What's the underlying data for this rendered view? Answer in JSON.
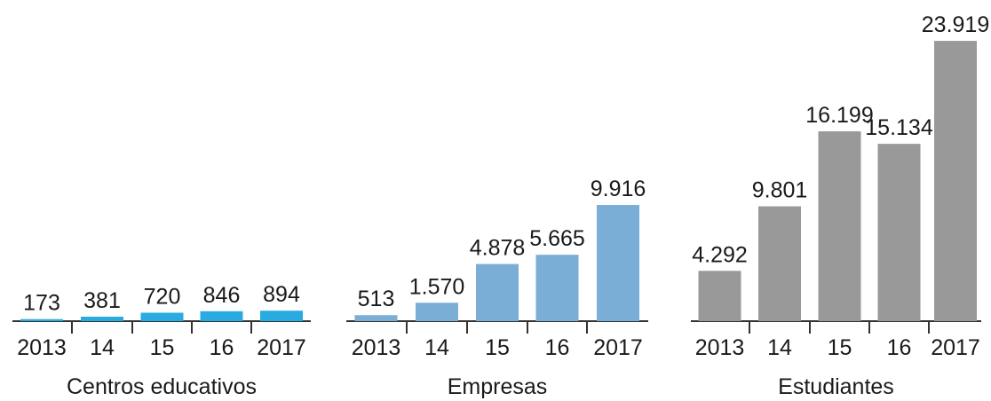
{
  "chart_data": [
    {
      "type": "bar",
      "xlabel": "Centros educativos",
      "categories": [
        "2013",
        "14",
        "15",
        "16",
        "2017"
      ],
      "values": [
        173,
        381,
        720,
        846,
        894
      ],
      "value_labels": [
        "173",
        "381",
        "720",
        "846",
        "894"
      ],
      "color": "#29abe2",
      "ylim": [
        0,
        24000
      ]
    },
    {
      "type": "bar",
      "xlabel": "Empresas",
      "categories": [
        "2013",
        "14",
        "15",
        "16",
        "2017"
      ],
      "values": [
        513,
        1570,
        4878,
        5665,
        9916
      ],
      "value_labels": [
        "513",
        "1.570",
        "4.878",
        "5.665",
        "9.916"
      ],
      "color": "#7aaed6",
      "ylim": [
        0,
        24000
      ]
    },
    {
      "type": "bar",
      "xlabel": "Estudiantes",
      "categories": [
        "2013",
        "14",
        "15",
        "16",
        "2017"
      ],
      "values": [
        4292,
        9801,
        16199,
        15134,
        23919
      ],
      "value_labels": [
        "4.292",
        "9.801",
        "16.199",
        "15.134",
        "23.919"
      ],
      "color": "#999999",
      "ylim": [
        0,
        24000
      ]
    }
  ]
}
